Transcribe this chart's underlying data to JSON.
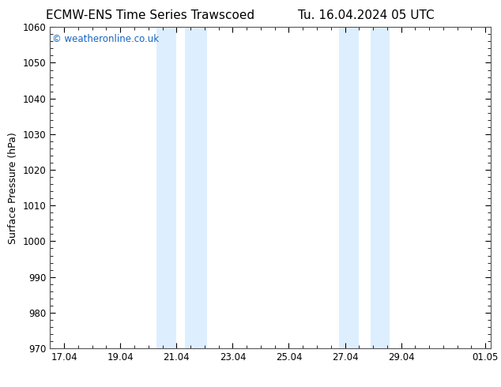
{
  "title_left": "ECMW-ENS Time Series Trawscoed",
  "title_right": "Tu. 16.04.2024 05 UTC",
  "ylabel": "Surface Pressure (hPa)",
  "ylim": [
    970,
    1060
  ],
  "yticks": [
    970,
    980,
    990,
    1000,
    1010,
    1020,
    1030,
    1040,
    1050,
    1060
  ],
  "xlim_start": 16.5,
  "xlim_end": 32.2,
  "xtick_labels": [
    "17.04",
    "19.04",
    "21.04",
    "23.04",
    "25.04",
    "27.04",
    "29.04",
    "01.05"
  ],
  "xtick_positions": [
    17.0,
    19.0,
    21.0,
    23.0,
    25.0,
    27.0,
    29.0,
    32.0
  ],
  "shaded_bands": [
    {
      "x_start": 20.3,
      "x_end": 21.0
    },
    {
      "x_start": 21.3,
      "x_end": 22.1
    },
    {
      "x_start": 26.8,
      "x_end": 27.5
    },
    {
      "x_start": 27.9,
      "x_end": 28.6
    }
  ],
  "shade_color": "#ddeeff",
  "background_color": "#ffffff",
  "plot_bg_color": "#ffffff",
  "watermark_text": "© weatheronline.co.uk",
  "watermark_color": "#1565c0",
  "watermark_fontsize": 8.5,
  "title_fontsize": 11,
  "ylabel_fontsize": 9,
  "tick_fontsize": 8.5,
  "spine_color": "#555555"
}
